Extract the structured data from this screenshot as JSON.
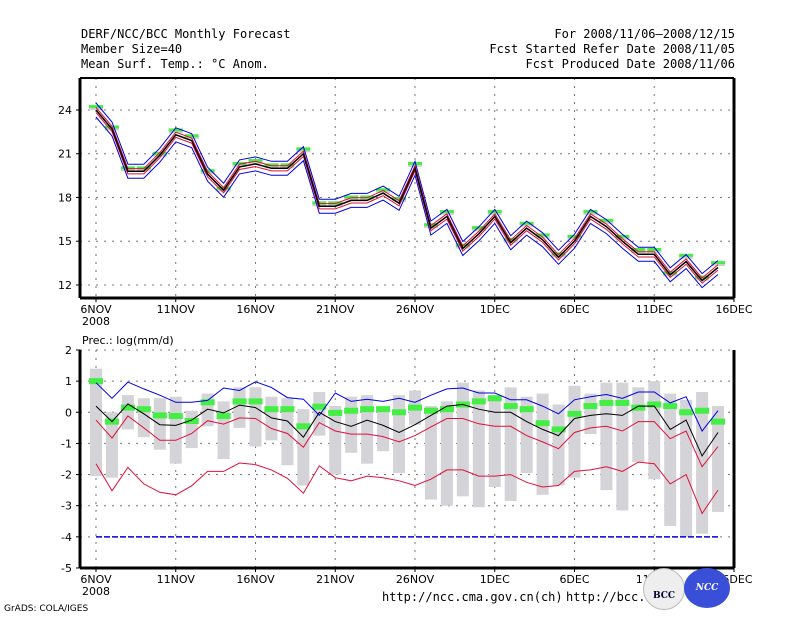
{
  "header": {
    "left": [
      "DERF/NCC/BCC Monthly Forecast",
      "Member Size=40",
      "Mean Surf. Temp.: °C Anom."
    ],
    "right": [
      "For 2008/11/06—2008/12/15",
      "Fcst Started Refer Date 2008/11/05",
      "Fcst Produced Date 2008/11/06"
    ]
  },
  "footer": {
    "url_ch": "http://ncc.cma.gov.cn(ch)",
    "url_bcc": "http://bcc.c",
    "credit": "GrADS: COLA/IGES",
    "logo_bcc": "BCC",
    "logo_ncc": "NCC"
  },
  "chart_data": [
    {
      "type": "line",
      "title": "Mean Surf. Temp.: °C Anom.",
      "xlabel": "",
      "ylabel": "",
      "ylim": [
        11,
        25.5
      ],
      "yticks": [
        12,
        15,
        18,
        21,
        24
      ],
      "xticks": [
        {
          "day": 0,
          "label": "6NOV",
          "sub": "2008"
        },
        {
          "day": 5,
          "label": "11NOV"
        },
        {
          "day": 10,
          "label": "16NOV"
        },
        {
          "day": 15,
          "label": "21NOV"
        },
        {
          "day": 20,
          "label": "26NOV"
        },
        {
          "day": 25,
          "label": "1DEC"
        },
        {
          "day": 30,
          "label": "6DEC"
        },
        {
          "day": 35,
          "label": "11DEC"
        },
        {
          "day": 40,
          "label": "16DEC"
        }
      ],
      "grid": true,
      "colors": {
        "mean": "#000000",
        "inner": "#e0103a",
        "outer": "#0000e0",
        "marker": "#44ee44",
        "bar": "#cccccc"
      },
      "mean": [
        24.0,
        22.7,
        19.8,
        19.8,
        20.9,
        22.3,
        21.9,
        19.6,
        18.5,
        20.1,
        20.3,
        20.0,
        20.0,
        21.0,
        17.4,
        17.4,
        17.8,
        17.8,
        18.3,
        17.6,
        20.0,
        15.9,
        16.7,
        14.5,
        15.5,
        16.7,
        14.9,
        15.9,
        15.1,
        13.9,
        15.0,
        16.7,
        16.0,
        15.0,
        14.1,
        14.1,
        12.7,
        13.6,
        12.3,
        13.2
      ],
      "spread": 0.3,
      "markers": [
        24.2,
        22.8,
        20.0,
        20.0,
        21.0,
        22.6,
        22.2,
        19.8,
        18.6,
        20.3,
        20.5,
        20.2,
        20.2,
        21.3,
        17.6,
        17.6,
        18.0,
        18.0,
        18.5,
        17.9,
        20.3,
        16.1,
        17.0,
        14.7,
        15.9,
        17.0,
        15.1,
        16.2,
        15.4,
        14.1,
        15.3,
        17.0,
        16.4,
        15.3,
        14.4,
        14.4,
        12.8,
        14.0,
        12.5,
        13.5
      ]
    },
    {
      "type": "line",
      "title": "Prec.: log(mm/d)",
      "xlabel": "",
      "ylabel": "",
      "ylim": [
        -5,
        2
      ],
      "yticks": [
        -5,
        -4,
        -3,
        -2,
        -1,
        0,
        1,
        2
      ],
      "xticks": [
        {
          "day": 0,
          "label": "6NOV",
          "sub": "2008"
        },
        {
          "day": 5,
          "label": "11NOV"
        },
        {
          "day": 10,
          "label": "16NOV"
        },
        {
          "day": 15,
          "label": "21NOV"
        },
        {
          "day": 20,
          "label": "26NOV"
        },
        {
          "day": 25,
          "label": "1DEC"
        },
        {
          "day": 30,
          "label": "6DEC"
        },
        {
          "day": 35,
          "label": "11DEC"
        },
        {
          "day": 40,
          "label": "16DEC"
        }
      ],
      "grid": true,
      "colors": {
        "mean": "#000000",
        "upper": "#0000e0",
        "lower": "#e0103a",
        "min": "#e0103a",
        "floor": "#0000e0",
        "marker": "#44ee44",
        "bar": "#d3d3d8"
      },
      "upper": [
        0.95,
        0.45,
        0.97,
        0.75,
        0.55,
        0.32,
        0.32,
        0.38,
        0.78,
        0.7,
        0.98,
        0.8,
        0.47,
        0.42,
        -0.1,
        0.62,
        0.35,
        0.42,
        0.35,
        0.45,
        0.32,
        0.55,
        0.75,
        0.78,
        0.62,
        0.62,
        0.4,
        0.4,
        0.2,
        -0.05,
        0.4,
        0.5,
        0.57,
        0.45,
        0.65,
        0.65,
        0.3,
        0.5,
        -0.6,
        0.05
      ],
      "mean": [
        0.2,
        -0.3,
        0.27,
        -0.05,
        -0.4,
        -0.42,
        -0.25,
        0.1,
        -0.02,
        0.23,
        0.15,
        -0.18,
        -0.28,
        -0.8,
        0.0,
        -0.3,
        -0.45,
        -0.25,
        -0.42,
        -0.65,
        -0.4,
        -0.1,
        0.2,
        0.25,
        0.1,
        0.0,
        0.0,
        -0.3,
        -0.55,
        -0.75,
        -0.2,
        -0.1,
        -0.05,
        -0.1,
        0.2,
        0.2,
        -0.55,
        -0.25,
        -1.4,
        -0.65
      ],
      "lower": [
        -0.25,
        -0.83,
        -0.12,
        -0.5,
        -0.9,
        -0.9,
        -0.68,
        -0.27,
        -0.38,
        -0.18,
        -0.2,
        -0.52,
        -0.68,
        -1.12,
        -0.33,
        -0.6,
        -0.7,
        -0.7,
        -0.78,
        -0.95,
        -0.75,
        -0.47,
        -0.2,
        -0.2,
        -0.37,
        -0.45,
        -0.45,
        -0.75,
        -0.95,
        -1.17,
        -0.65,
        -0.5,
        -0.45,
        -0.6,
        -0.3,
        -0.3,
        -0.85,
        -0.6,
        -1.75,
        -1.1
      ],
      "min": [
        -1.65,
        -2.52,
        -1.77,
        -2.3,
        -2.57,
        -2.65,
        -2.36,
        -1.9,
        -1.9,
        -1.63,
        -1.68,
        -1.85,
        -2.12,
        -2.6,
        -1.72,
        -2.1,
        -2.2,
        -2.05,
        -2.1,
        -2.2,
        -2.35,
        -2.15,
        -1.85,
        -1.85,
        -2.05,
        -2.05,
        -2.0,
        -2.25,
        -2.4,
        -2.35,
        -1.9,
        -1.85,
        -1.75,
        -1.9,
        -1.6,
        -1.65,
        -2.3,
        -2.0,
        -3.25,
        -2.5
      ],
      "floor": -4,
      "markers": [
        1.0,
        -0.3,
        0.15,
        0.1,
        -0.1,
        -0.12,
        -0.28,
        0.32,
        -0.12,
        0.35,
        0.35,
        0.1,
        0.1,
        -0.45,
        0.18,
        -0.02,
        0.05,
        0.1,
        0.1,
        0.0,
        0.15,
        0.05,
        0.1,
        0.25,
        0.35,
        0.45,
        0.2,
        0.1,
        -0.35,
        -0.55,
        -0.05,
        0.2,
        0.3,
        0.3,
        0.15,
        0.25,
        0.2,
        0.0,
        0.05,
        -0.3
      ],
      "bars": [
        [
          -2.05,
          1.4
        ],
        [
          -2.1,
          0.0
        ],
        [
          -0.55,
          0.55
        ],
        [
          -0.8,
          0.45
        ],
        [
          -1.2,
          0.45
        ],
        [
          -1.65,
          0.5
        ],
        [
          -1.15,
          0.05
        ],
        [
          -0.45,
          0.6
        ],
        [
          -1.5,
          0.35
        ],
        [
          -0.5,
          0.8
        ],
        [
          -1.1,
          0.8
        ],
        [
          -0.9,
          0.5
        ],
        [
          -1.7,
          0.45
        ],
        [
          -2.35,
          0.1
        ],
        [
          -0.75,
          0.65
        ],
        [
          -2.0,
          0.2
        ],
        [
          -1.3,
          0.5
        ],
        [
          -1.65,
          0.55
        ],
        [
          -1.25,
          0.15
        ],
        [
          -1.95,
          0.55
        ],
        [
          -0.4,
          0.7
        ],
        [
          -2.8,
          0.2
        ],
        [
          -3.0,
          0.35
        ],
        [
          -2.7,
          0.95
        ],
        [
          -3.05,
          0.7
        ],
        [
          -2.4,
          0.55
        ],
        [
          -2.85,
          0.8
        ],
        [
          -1.95,
          0.5
        ],
        [
          -2.65,
          0.6
        ],
        [
          -2.35,
          0.25
        ],
        [
          -2.1,
          0.85
        ],
        [
          -0.7,
          0.6
        ],
        [
          -2.5,
          0.95
        ],
        [
          -3.15,
          0.95
        ],
        [
          -1.6,
          0.8
        ],
        [
          -2.15,
          1.0
        ],
        [
          -3.65,
          0.6
        ],
        [
          -4.0,
          0.4
        ],
        [
          -3.9,
          0.65
        ],
        [
          -3.2,
          0.2
        ]
      ]
    }
  ]
}
